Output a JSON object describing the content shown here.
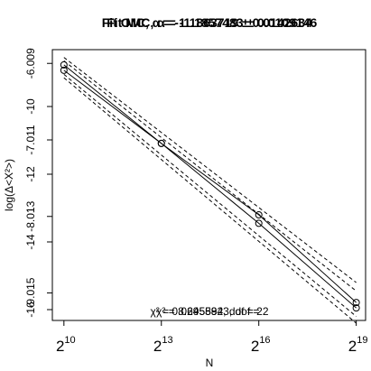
{
  "chart_data": {
    "type": "scatter",
    "titles": [
      "Fit MC, α = -1.1863719 ± 0.0142634",
      "Fit OMC, α = -1.1857483 ± 0.0109146"
    ],
    "x_label": "N",
    "y_label": "log(Δ<X²>)",
    "notes": [
      "χ² = 0.06955923, dof = 2",
      "χ² = 8.245884, dof = 2"
    ],
    "x_log_base": 2,
    "x": [
      1024,
      8192,
      65536,
      524288
    ],
    "xlim": [
      800,
      640000
    ],
    "xticks": [
      {
        "value": 1024,
        "label": "2",
        "power": "10"
      },
      {
        "value": 8192,
        "label": "2",
        "power": "13"
      },
      {
        "value": 65536,
        "label": "2",
        "power": "16"
      },
      {
        "value": 524288,
        "label": "2",
        "power": "19"
      }
    ],
    "ylim": [
      -16.32,
      -8.32
    ],
    "yticks": [
      -10,
      -12,
      -14,
      -16
    ],
    "y2lim": [
      -9.375,
      -5.829
    ],
    "y2ticks": [
      -6.009,
      -7.011,
      -8.013,
      -9.015
    ],
    "series": [
      {
        "name": "MC",
        "color": "#000000",
        "values": [
          -8.77,
          -11.09,
          -13.2,
          -15.79
        ]
      },
      {
        "name": "OMC",
        "color": "#000000",
        "values": [
          -8.93,
          -11.09,
          -13.45,
          -15.95
        ]
      }
    ],
    "bands": [
      [
        -8.55,
        -15.2
      ],
      [
        -8.65,
        -15.45
      ],
      [
        -9.05,
        -16.2
      ],
      [
        -9.15,
        -16.4
      ]
    ]
  }
}
